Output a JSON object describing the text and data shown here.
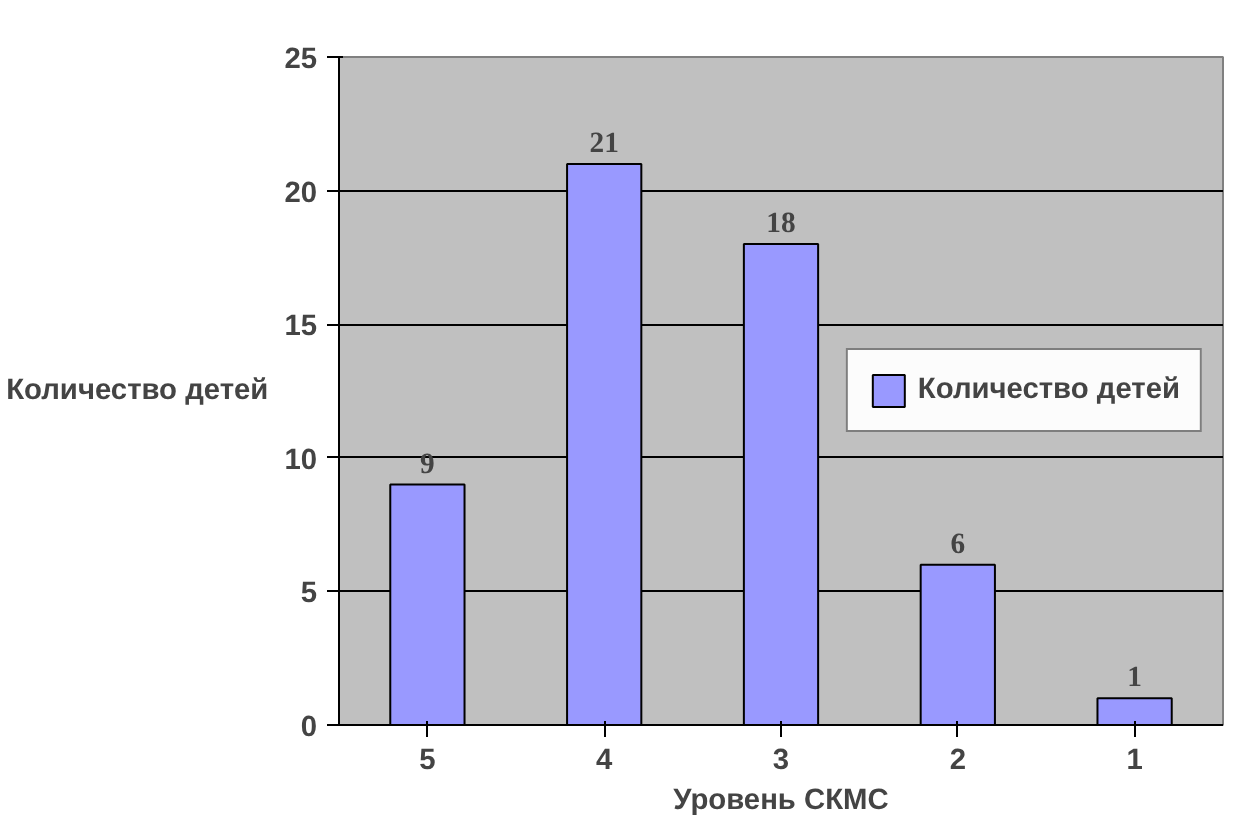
{
  "chart_data": {
    "type": "bar",
    "xlabel": "Уровень СКМС",
    "ylabel": "Количество детей",
    "categories": [
      "5",
      "4",
      "3",
      "2",
      "1"
    ],
    "series": [
      {
        "name": "Количество детей",
        "color": "#9999ff",
        "values": [
          9,
          21,
          18,
          6,
          1
        ]
      }
    ],
    "ylim": [
      0,
      25
    ],
    "yticks": [
      0,
      5,
      10,
      15,
      20,
      25
    ],
    "grid": "y",
    "legend": "right",
    "data_labels": true
  }
}
